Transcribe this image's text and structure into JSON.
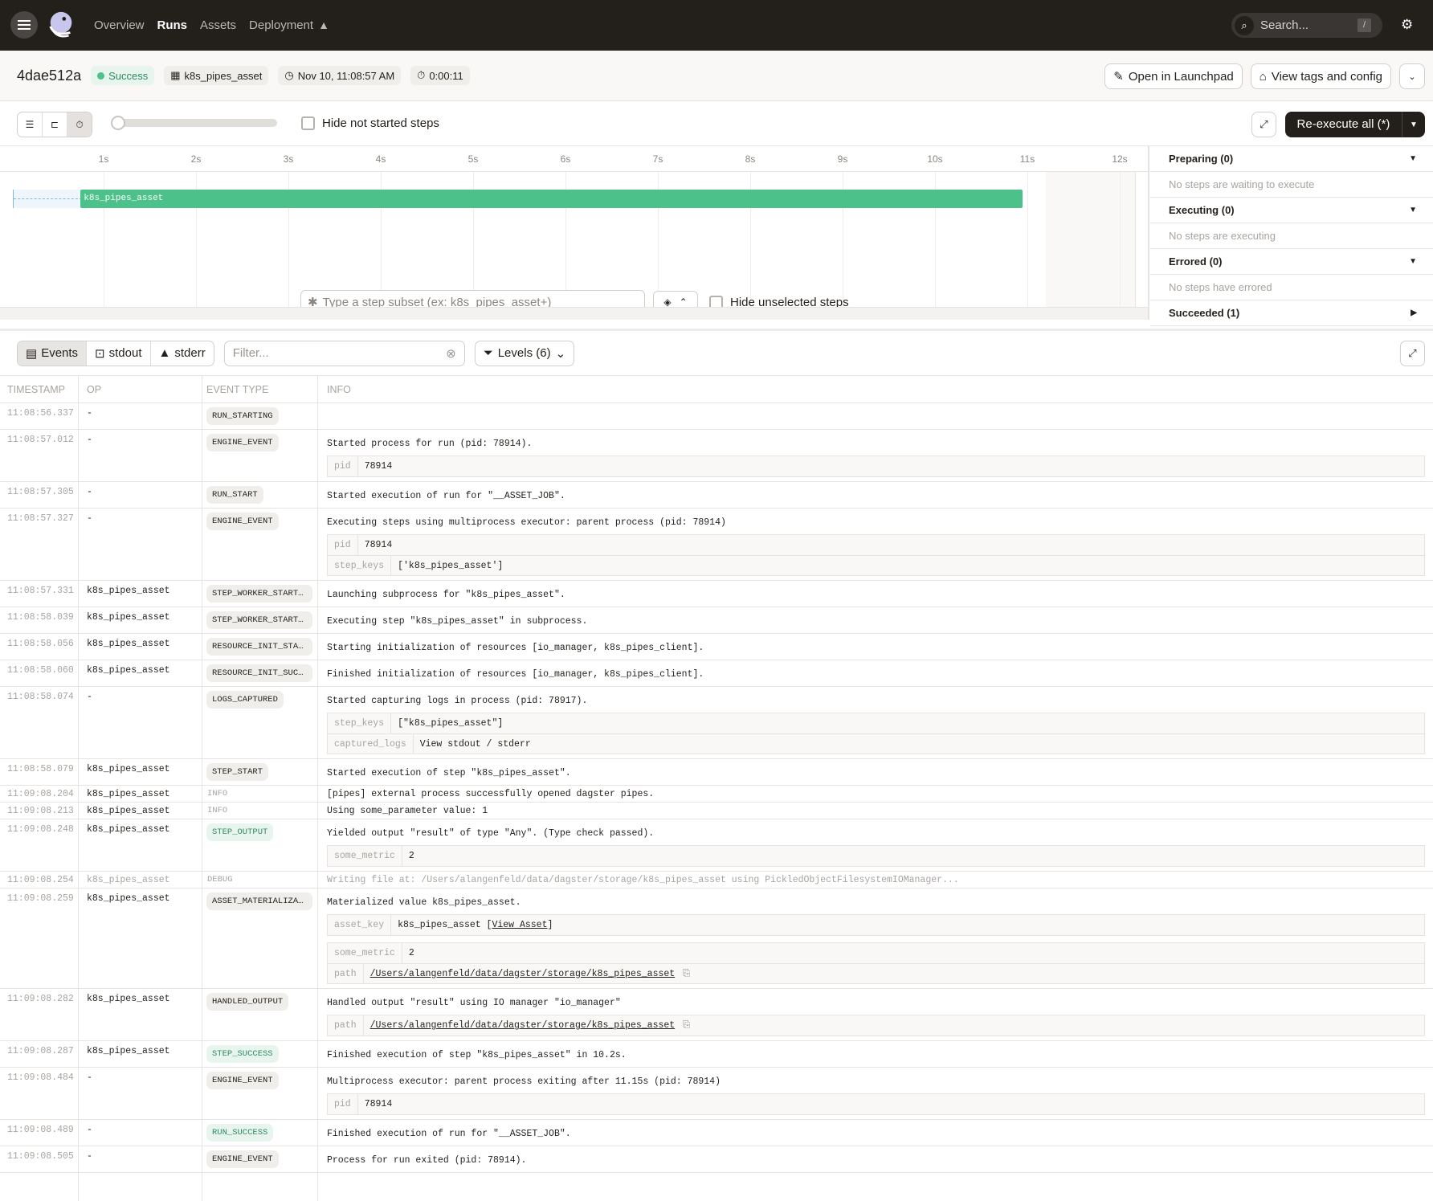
{
  "nav": {
    "items": [
      "Overview",
      "Runs",
      "Assets",
      "Deployment"
    ],
    "active": "Runs",
    "search_placeholder": "Search...",
    "search_shortcut": "/"
  },
  "run": {
    "id": "4dae512a",
    "status": "Success",
    "job": "k8s_pipes_asset",
    "start": "Nov 10, 11:08:57 AM",
    "duration": "0:00:11",
    "open_launchpad": "Open in Launchpad",
    "view_tags": "View tags and config"
  },
  "toolbar": {
    "hide_not_started": "Hide not started steps",
    "reexecute": "Re-execute all (*)"
  },
  "gantt": {
    "ticks": [
      "1s",
      "2s",
      "3s",
      "4s",
      "5s",
      "6s",
      "7s",
      "8s",
      "9s",
      "10s",
      "11s",
      "12s"
    ],
    "step": "k8s_pipes_asset",
    "step_start_s": 0.75,
    "step_end_s": 10.95,
    "subset_placeholder": "Type a step subset (ex: k8s_pipes_asset+)",
    "hide_unselected": "Hide unselected steps"
  },
  "status_panel": [
    {
      "title": "Preparing (0)",
      "empty": "No steps are waiting to execute",
      "expanded": true
    },
    {
      "title": "Executing (0)",
      "empty": "No steps are executing",
      "expanded": true
    },
    {
      "title": "Errored (0)",
      "empty": "No steps have errored",
      "expanded": true
    },
    {
      "title": "Succeeded (1)",
      "expanded": false
    }
  ],
  "logs": {
    "tabs": [
      "Events",
      "stdout",
      "stderr"
    ],
    "filter_placeholder": "Filter...",
    "levels": "Levels (6)",
    "columns": [
      "TIMESTAMP",
      "OP",
      "EVENT TYPE",
      "INFO"
    ],
    "rows": [
      {
        "ts": "11:08:56.337",
        "op": "-",
        "type": "RUN_STARTING",
        "info": ""
      },
      {
        "ts": "11:08:57.012",
        "op": "-",
        "type": "ENGINE_EVENT",
        "info": "Started process for run (pid: 78914).",
        "kv": [
          [
            {
              "k": "pid",
              "v": "78914"
            }
          ]
        ]
      },
      {
        "ts": "11:08:57.305",
        "op": "-",
        "type": "RUN_START",
        "info": "Started execution of run for \"__ASSET_JOB\"."
      },
      {
        "ts": "11:08:57.327",
        "op": "-",
        "type": "ENGINE_EVENT",
        "info": "Executing steps using multiprocess executor: parent process (pid: 78914)",
        "kv": [
          [
            {
              "k": "pid",
              "v": "78914"
            },
            {
              "k": "step_keys",
              "v": "['k8s_pipes_asset']"
            }
          ]
        ]
      },
      {
        "ts": "11:08:57.331",
        "op": "k8s_pipes_asset",
        "type": "STEP_WORKER_STARTING",
        "info": "Launching subprocess for \"k8s_pipes_asset\"."
      },
      {
        "ts": "11:08:58.039",
        "op": "k8s_pipes_asset",
        "type": "STEP_WORKER_STARTED",
        "info": "Executing step \"k8s_pipes_asset\" in subprocess."
      },
      {
        "ts": "11:08:58.056",
        "op": "k8s_pipes_asset",
        "type": "RESOURCE_INIT_STARTED",
        "info": "Starting initialization of resources [io_manager, k8s_pipes_client]."
      },
      {
        "ts": "11:08:58.060",
        "op": "k8s_pipes_asset",
        "type": "RESOURCE_INIT_SUCCESS",
        "info": "Finished initialization of resources [io_manager, k8s_pipes_client]."
      },
      {
        "ts": "11:08:58.074",
        "op": "-",
        "type": "LOGS_CAPTURED",
        "info": "Started capturing logs in process (pid: 78917).",
        "kv": [
          [
            {
              "k": "step_keys",
              "v": "[\"k8s_pipes_asset\"]"
            },
            {
              "k": "captured_logs",
              "v": "View stdout / stderr"
            }
          ]
        ]
      },
      {
        "ts": "11:08:58.079",
        "op": "k8s_pipes_asset",
        "type": "STEP_START",
        "info": "Started execution of step \"k8s_pipes_asset\"."
      },
      {
        "ts": "11:09:08.204",
        "op": "k8s_pipes_asset",
        "type": "INFO",
        "level": "info",
        "info": "[pipes] external process successfully opened dagster pipes."
      },
      {
        "ts": "11:09:08.213",
        "op": "k8s_pipes_asset",
        "type": "INFO",
        "level": "info",
        "info": "Using some_parameter value: 1"
      },
      {
        "ts": "11:09:08.248",
        "op": "k8s_pipes_asset",
        "type": "STEP_OUTPUT",
        "style": "success",
        "info": "Yielded output \"result\" of type \"Any\". (Type check passed).",
        "kv": [
          [
            {
              "k": "some_metric",
              "v": "2"
            }
          ]
        ]
      },
      {
        "ts": "11:09:08.254",
        "op": "k8s_pipes_asset",
        "type": "DEBUG",
        "level": "debug",
        "info": "Writing file at: /Users/alangenfeld/data/dagster/storage/k8s_pipes_asset using PickledObjectFilesystemIOManager..."
      },
      {
        "ts": "11:09:08.259",
        "op": "k8s_pipes_asset",
        "type": "ASSET_MATERIALIZATION",
        "info": "Materialized value k8s_pipes_asset.",
        "kv": [
          [
            {
              "k": "asset_key",
              "v": "k8s_pipes_asset",
              "link": "View Asset"
            }
          ],
          [
            {
              "k": "some_metric",
              "v": "2"
            },
            {
              "k": "path",
              "v": "/Users/alangenfeld/data/dagster/storage/k8s_pipes_asset",
              "underline": true,
              "copy": true
            }
          ]
        ]
      },
      {
        "ts": "11:09:08.282",
        "op": "k8s_pipes_asset",
        "type": "HANDLED_OUTPUT",
        "info": "Handled output \"result\" using IO manager \"io_manager\"",
        "kv": [
          [
            {
              "k": "path",
              "v": "/Users/alangenfeld/data/dagster/storage/k8s_pipes_asset",
              "underline": true,
              "copy": true
            }
          ]
        ]
      },
      {
        "ts": "11:09:08.287",
        "op": "k8s_pipes_asset",
        "type": "STEP_SUCCESS",
        "style": "success",
        "info": "Finished execution of step \"k8s_pipes_asset\" in 10.2s."
      },
      {
        "ts": "11:09:08.484",
        "op": "-",
        "type": "ENGINE_EVENT",
        "info": "Multiprocess executor: parent process exiting after 11.15s (pid: 78914)",
        "kv": [
          [
            {
              "k": "pid",
              "v": "78914"
            }
          ]
        ]
      },
      {
        "ts": "11:09:08.489",
        "op": "-",
        "type": "RUN_SUCCESS",
        "style": "success",
        "info": "Finished execution of run for \"__ASSET_JOB\"."
      },
      {
        "ts": "11:09:08.505",
        "op": "-",
        "type": "ENGINE_EVENT",
        "info": "Process for run exited (pid: 78914)."
      }
    ]
  },
  "colors": {
    "success": "#4cc189",
    "nav_bg": "#231f1b",
    "warning": "#f2b22b"
  }
}
